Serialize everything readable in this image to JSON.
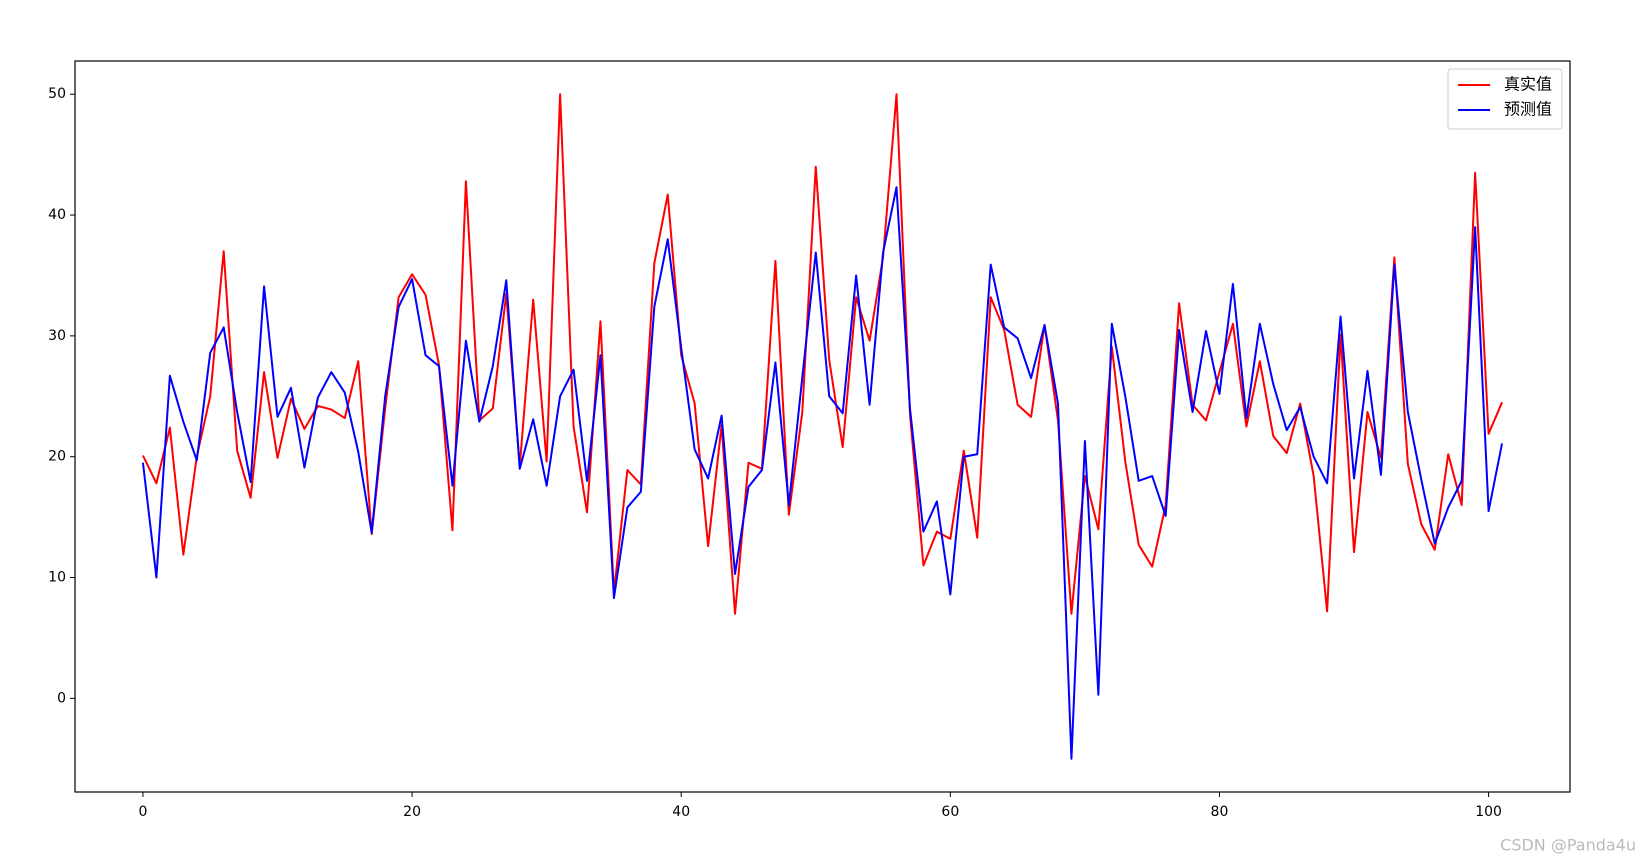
{
  "chart_data": {
    "type": "line",
    "x": [
      0,
      1,
      2,
      3,
      4,
      5,
      6,
      7,
      8,
      9,
      10,
      11,
      12,
      13,
      14,
      15,
      16,
      17,
      18,
      19,
      20,
      21,
      22,
      23,
      24,
      25,
      26,
      27,
      28,
      29,
      30,
      31,
      32,
      33,
      34,
      35,
      36,
      37,
      38,
      39,
      40,
      41,
      42,
      43,
      44,
      45,
      46,
      47,
      48,
      49,
      50,
      51,
      52,
      53,
      54,
      55,
      56,
      57,
      58,
      59,
      60,
      61,
      62,
      63,
      64,
      65,
      66,
      67,
      68,
      69,
      70,
      71,
      72,
      73,
      74,
      75,
      76,
      77,
      78,
      79,
      80,
      81,
      82,
      83,
      84,
      85,
      86,
      87,
      88,
      89,
      90,
      91,
      92,
      93,
      94,
      95,
      96,
      97,
      98,
      99,
      100,
      101
    ],
    "series": [
      {
        "name": "真实值",
        "color": "#ff0000",
        "values": [
          20.1,
          17.8,
          22.4,
          11.9,
          20.0,
          25.0,
          37.0,
          20.5,
          16.6,
          27.0,
          19.9,
          24.8,
          22.3,
          24.2,
          23.9,
          23.2,
          27.9,
          13.6,
          24.0,
          33.2,
          35.1,
          33.4,
          27.6,
          13.9,
          42.8,
          23.0,
          24.0,
          33.5,
          19.2,
          33.0,
          19.6,
          50.0,
          22.5,
          15.4,
          31.2,
          8.8,
          18.9,
          17.7,
          36.0,
          41.7,
          28.4,
          24.4,
          12.6,
          22.6,
          7.0,
          19.5,
          19.0,
          36.2,
          15.2,
          23.7,
          44.0,
          28.0,
          20.8,
          33.2,
          29.6,
          36.5,
          50.0,
          23.5,
          11.0,
          13.8,
          13.2,
          20.5,
          13.3,
          33.2,
          30.5,
          24.3,
          23.3,
          30.9,
          23.0,
          7.0,
          18.4,
          14.0,
          29.1,
          19.6,
          12.7,
          10.9,
          16.0,
          32.7,
          24.3,
          23.0,
          27.0,
          31.0,
          22.5,
          27.9,
          21.7,
          20.3,
          24.4,
          18.4,
          7.2,
          30.1,
          12.1,
          23.7,
          19.9,
          36.5,
          19.4,
          14.4,
          12.3,
          20.2,
          16.0,
          43.5,
          21.9,
          24.5
        ]
      },
      {
        "name": "预测值",
        "color": "#0000ff",
        "values": [
          19.5,
          10.0,
          26.7,
          22.9,
          19.7,
          28.6,
          30.7,
          23.7,
          17.9,
          34.1,
          23.3,
          25.7,
          19.1,
          24.9,
          27.0,
          25.3,
          20.4,
          13.7,
          25.0,
          32.4,
          34.7,
          28.4,
          27.5,
          17.6,
          29.6,
          22.9,
          27.5,
          34.6,
          19.0,
          23.1,
          17.6,
          25.0,
          27.2,
          18.0,
          28.4,
          8.3,
          15.8,
          17.1,
          32.4,
          38.0,
          29.0,
          20.6,
          18.2,
          23.4,
          10.3,
          17.5,
          18.9,
          27.8,
          16.0,
          26.6,
          36.9,
          25.0,
          23.6,
          35.0,
          24.3,
          36.9,
          42.3,
          24.0,
          13.8,
          16.3,
          8.6,
          20.0,
          20.2,
          35.9,
          30.7,
          29.8,
          26.5,
          30.9,
          24.4,
          -5.0,
          21.3,
          0.3,
          31.0,
          25.0,
          18.0,
          18.4,
          15.1,
          30.5,
          23.7,
          30.4,
          25.2,
          34.3,
          23.2,
          31.0,
          26.0,
          22.2,
          24.1,
          20.0,
          17.8,
          31.6,
          18.2,
          27.1,
          18.5,
          35.9,
          23.7,
          18.1,
          12.8,
          15.8,
          18.0,
          39.0,
          15.5,
          21.1
        ]
      }
    ],
    "xlim": [
      -5.05,
      106.05
    ],
    "xticks": [
      0,
      20,
      40,
      60,
      80,
      100
    ],
    "ylim": [
      -7.75,
      52.75
    ],
    "yticks": [
      0,
      10,
      20,
      30,
      40,
      50
    ],
    "grid": false,
    "legend": "upper right",
    "watermark": "CSDN @Panda4u"
  }
}
